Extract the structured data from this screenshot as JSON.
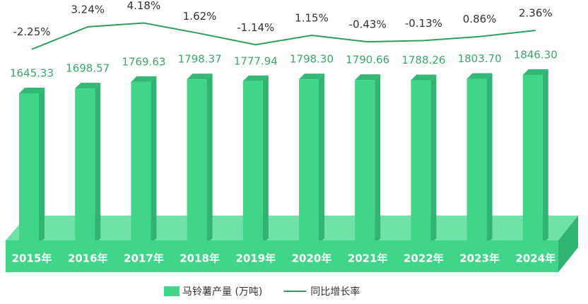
{
  "chart_data": {
    "type": "bar-line",
    "categories": [
      "2015年",
      "2016年",
      "2017年",
      "2018年",
      "2019年",
      "2020年",
      "2021年",
      "2022年",
      "2023年",
      "2024年"
    ],
    "series": [
      {
        "name": "马铃薯产量 (万吨)",
        "type": "bar",
        "color": "#3fd68a",
        "values": [
          1645.33,
          1698.57,
          1769.63,
          1798.37,
          1777.94,
          1798.3,
          1790.66,
          1788.26,
          1803.7,
          1846.3
        ],
        "value_labels": [
          "1645.33",
          "1698.57",
          "1769.63",
          "1798.37",
          "1777.94",
          "1798.30",
          "1790.66",
          "1788.26",
          "1803.70",
          "1846.30"
        ]
      },
      {
        "name": "同比增长率",
        "type": "line",
        "axis": "y2",
        "color": "#2e9e5e",
        "values": [
          -2.25,
          3.24,
          4.18,
          1.62,
          -1.14,
          1.15,
          -0.43,
          -0.13,
          0.86,
          2.36
        ],
        "value_labels": [
          "-2.25%",
          "3.24%",
          "4.18%",
          "1.62%",
          "-1.14%",
          "1.15%",
          "-0.43%",
          "-0.13%",
          "0.86%",
          "2.36%"
        ]
      }
    ],
    "ylim": [
      0,
      1900
    ],
    "y2lim": [
      -12,
      6
    ]
  }
}
